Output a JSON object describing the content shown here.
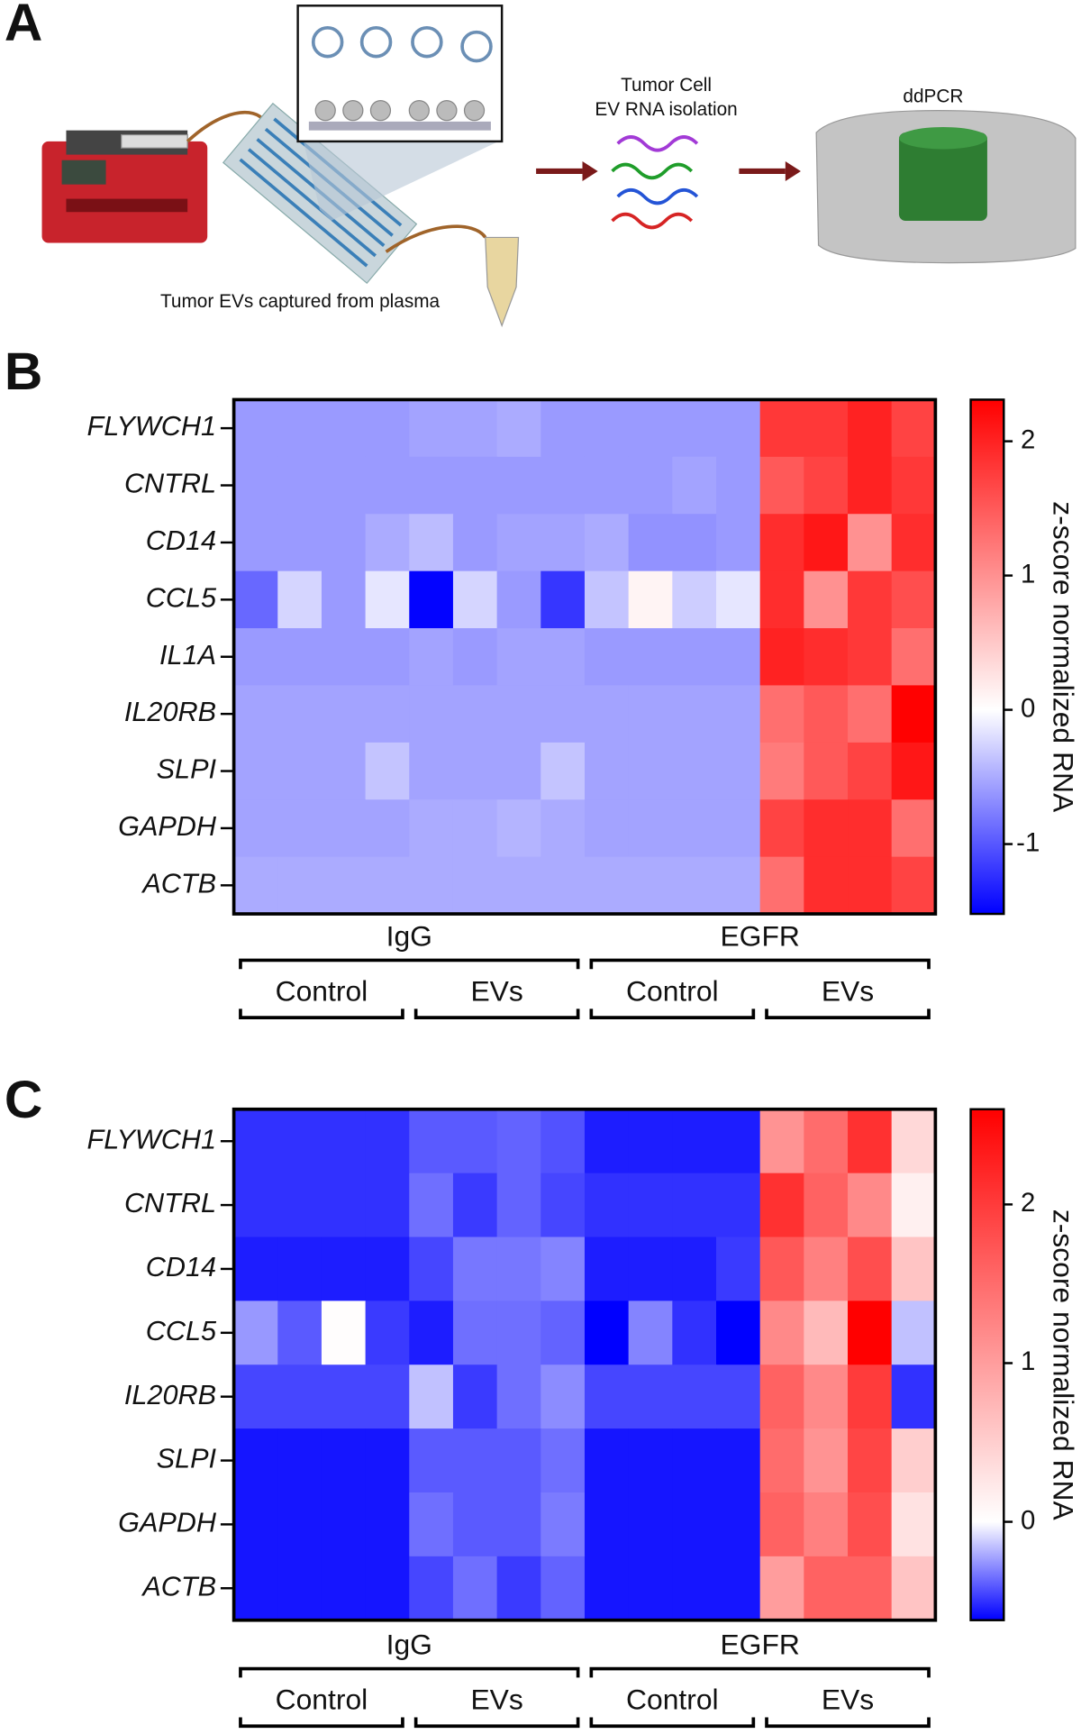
{
  "panel_a": {
    "label": "A",
    "capture_caption": "Tumor EVs captured from plasma",
    "isolation_caption": [
      "Tumor Cell",
      "EV RNA isolation"
    ],
    "instrument": "ddPCR"
  },
  "chart_data": [
    {
      "type": "heatmap",
      "panel_label": "B",
      "rows": [
        "FLYWCH1",
        "CNTRL",
        "CD14",
        "CCL5",
        "IL1A",
        "IL20RB",
        "SLPI",
        "GAPDH",
        "ACTB"
      ],
      "z": [
        [
          -0.6,
          -0.6,
          -0.6,
          -0.6,
          -0.55,
          -0.55,
          -0.5,
          -0.6,
          -0.6,
          -0.6,
          -0.6,
          -0.6,
          1.8,
          1.8,
          2.0,
          1.7
        ],
        [
          -0.6,
          -0.6,
          -0.6,
          -0.6,
          -0.6,
          -0.6,
          -0.6,
          -0.6,
          -0.6,
          -0.6,
          -0.55,
          -0.6,
          1.5,
          1.7,
          2.0,
          1.8
        ],
        [
          -0.6,
          -0.6,
          -0.6,
          -0.5,
          -0.4,
          -0.6,
          -0.55,
          -0.55,
          -0.5,
          -0.65,
          -0.65,
          -0.6,
          1.9,
          2.1,
          1.0,
          1.9
        ],
        [
          -0.9,
          -0.25,
          -0.6,
          -0.15,
          -1.5,
          -0.25,
          -0.6,
          -1.2,
          -0.35,
          0.1,
          -0.3,
          -0.15,
          1.9,
          1.0,
          1.8,
          1.6
        ],
        [
          -0.6,
          -0.6,
          -0.6,
          -0.6,
          -0.55,
          -0.6,
          -0.55,
          -0.55,
          -0.6,
          -0.6,
          -0.6,
          -0.6,
          2.0,
          1.9,
          1.8,
          1.3
        ],
        [
          -0.55,
          -0.55,
          -0.55,
          -0.55,
          -0.55,
          -0.55,
          -0.55,
          -0.55,
          -0.55,
          -0.55,
          -0.55,
          -0.55,
          1.3,
          1.5,
          1.3,
          2.3
        ],
        [
          -0.55,
          -0.55,
          -0.55,
          -0.35,
          -0.55,
          -0.55,
          -0.55,
          -0.35,
          -0.55,
          -0.55,
          -0.55,
          -0.55,
          1.2,
          1.5,
          1.7,
          2.1
        ],
        [
          -0.55,
          -0.55,
          -0.55,
          -0.55,
          -0.5,
          -0.5,
          -0.45,
          -0.5,
          -0.55,
          -0.55,
          -0.55,
          -0.55,
          1.7,
          1.9,
          1.9,
          1.3
        ],
        [
          -0.5,
          -0.5,
          -0.5,
          -0.5,
          -0.5,
          -0.5,
          -0.5,
          -0.5,
          -0.5,
          -0.5,
          -0.5,
          -0.5,
          1.3,
          1.9,
          1.9,
          1.7
        ]
      ],
      "zlim": [
        -1.52,
        2.31
      ],
      "zticks": [
        -1,
        0,
        1,
        2
      ],
      "colorbar_label": "z-score normalized RNA",
      "colormap": [
        "#0000ff",
        "#ffffff",
        "#ff0000"
      ],
      "groups": [
        "IgG",
        "EGFR"
      ],
      "subgroups": [
        "Control",
        "EVs",
        "Control",
        "EVs"
      ]
    },
    {
      "type": "heatmap",
      "panel_label": "C",
      "rows": [
        "FLYWCH1",
        "CNTRL",
        "CD14",
        "CCL5",
        "IL20RB",
        "SLPI",
        "GAPDH",
        "ACTB"
      ],
      "z": [
        [
          -0.5,
          -0.5,
          -0.5,
          -0.5,
          -0.4,
          -0.4,
          -0.38,
          -0.42,
          -0.55,
          -0.55,
          -0.55,
          -0.55,
          1.1,
          1.5,
          2.1,
          0.4
        ],
        [
          -0.5,
          -0.5,
          -0.5,
          -0.5,
          -0.35,
          -0.48,
          -0.38,
          -0.45,
          -0.5,
          -0.5,
          -0.5,
          -0.5,
          2.1,
          1.6,
          1.2,
          0.15
        ],
        [
          -0.55,
          -0.55,
          -0.55,
          -0.55,
          -0.45,
          -0.33,
          -0.33,
          -0.3,
          -0.55,
          -0.55,
          -0.55,
          -0.48,
          1.7,
          1.3,
          1.8,
          0.6
        ],
        [
          -0.25,
          -0.4,
          0.02,
          -0.48,
          -0.55,
          -0.35,
          -0.35,
          -0.38,
          -0.62,
          -0.3,
          -0.5,
          -0.62,
          1.2,
          0.7,
          2.6,
          -0.15
        ],
        [
          -0.45,
          -0.45,
          -0.45,
          -0.45,
          -0.15,
          -0.48,
          -0.35,
          -0.28,
          -0.45,
          -0.45,
          -0.45,
          -0.45,
          1.6,
          1.2,
          2.0,
          -0.5
        ],
        [
          -0.57,
          -0.57,
          -0.57,
          -0.57,
          -0.4,
          -0.4,
          -0.4,
          -0.35,
          -0.57,
          -0.57,
          -0.57,
          -0.57,
          1.5,
          1.1,
          1.9,
          0.5
        ],
        [
          -0.57,
          -0.57,
          -0.57,
          -0.57,
          -0.35,
          -0.4,
          -0.4,
          -0.32,
          -0.57,
          -0.57,
          -0.57,
          -0.57,
          1.6,
          1.3,
          1.8,
          0.3
        ],
        [
          -0.57,
          -0.57,
          -0.57,
          -0.57,
          -0.45,
          -0.35,
          -0.48,
          -0.38,
          -0.57,
          -0.57,
          -0.57,
          -0.57,
          1.0,
          1.6,
          1.6,
          0.6
        ]
      ],
      "zlim": [
        -0.62,
        2.6
      ],
      "zticks": [
        0,
        1,
        2
      ],
      "colorbar_label": "z-score normalized RNA",
      "colormap": [
        "#0000ff",
        "#ffffff",
        "#ff0000"
      ],
      "groups": [
        "IgG",
        "EGFR"
      ],
      "subgroups": [
        "Control",
        "EVs",
        "Control",
        "EVs"
      ]
    }
  ]
}
